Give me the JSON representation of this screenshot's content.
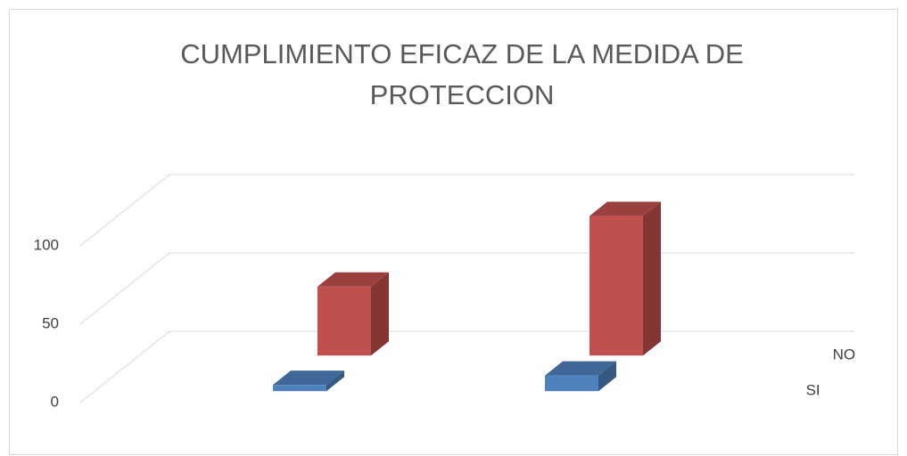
{
  "chart_data": {
    "type": "bar3d",
    "title": "CUMPLIMIENTO EFICAZ DE LA MEDIDA DE PROTECCION",
    "categories": [
      null,
      null
    ],
    "series": [
      {
        "name": "SI",
        "color": "#4f81bd",
        "values": [
          4,
          10
        ]
      },
      {
        "name": "NO",
        "color": "#c0504d",
        "values": [
          44,
          89
        ]
      }
    ],
    "ylim": [
      0,
      100
    ],
    "yticks": [
      0,
      50,
      100
    ],
    "grid": true
  }
}
